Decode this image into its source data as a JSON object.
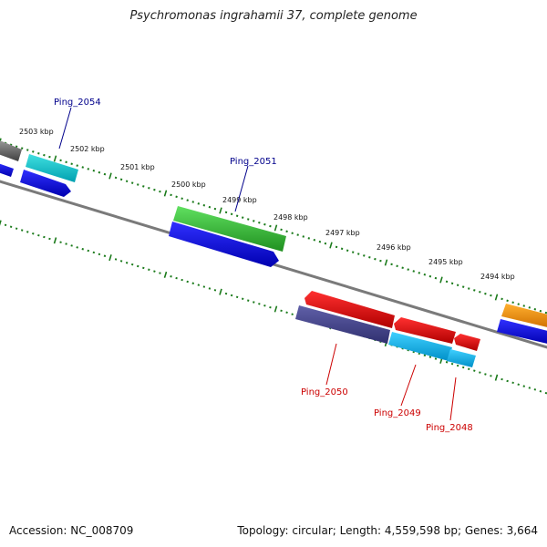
{
  "title": "Psychromonas ingrahamii 37, complete genome",
  "accession": "Accession: NC_008709",
  "summary": "Topology: circular; Length: 4,559,598 bp; Genes: 3,664",
  "colors": {
    "backbone": "#808080",
    "tick": "#1a7a1a",
    "label_forward": "#00008b",
    "label_reverse": "#cc0000"
  },
  "scale_labels": [
    "2503 kbp",
    "2502 kbp",
    "2501 kbp",
    "2500 kbp",
    "2499 kbp",
    "2498 kbp",
    "2497 kbp",
    "2496 kbp",
    "2495 kbp",
    "2494 kbp"
  ],
  "genes": [
    {
      "label": "Ping_2054",
      "strand": "forward"
    },
    {
      "label": "Ping_2051",
      "strand": "forward"
    },
    {
      "label": "Ping_2050",
      "strand": "reverse"
    },
    {
      "label": "Ping_2049",
      "strand": "reverse"
    },
    {
      "label": "Ping_2048",
      "strand": "reverse"
    }
  ]
}
